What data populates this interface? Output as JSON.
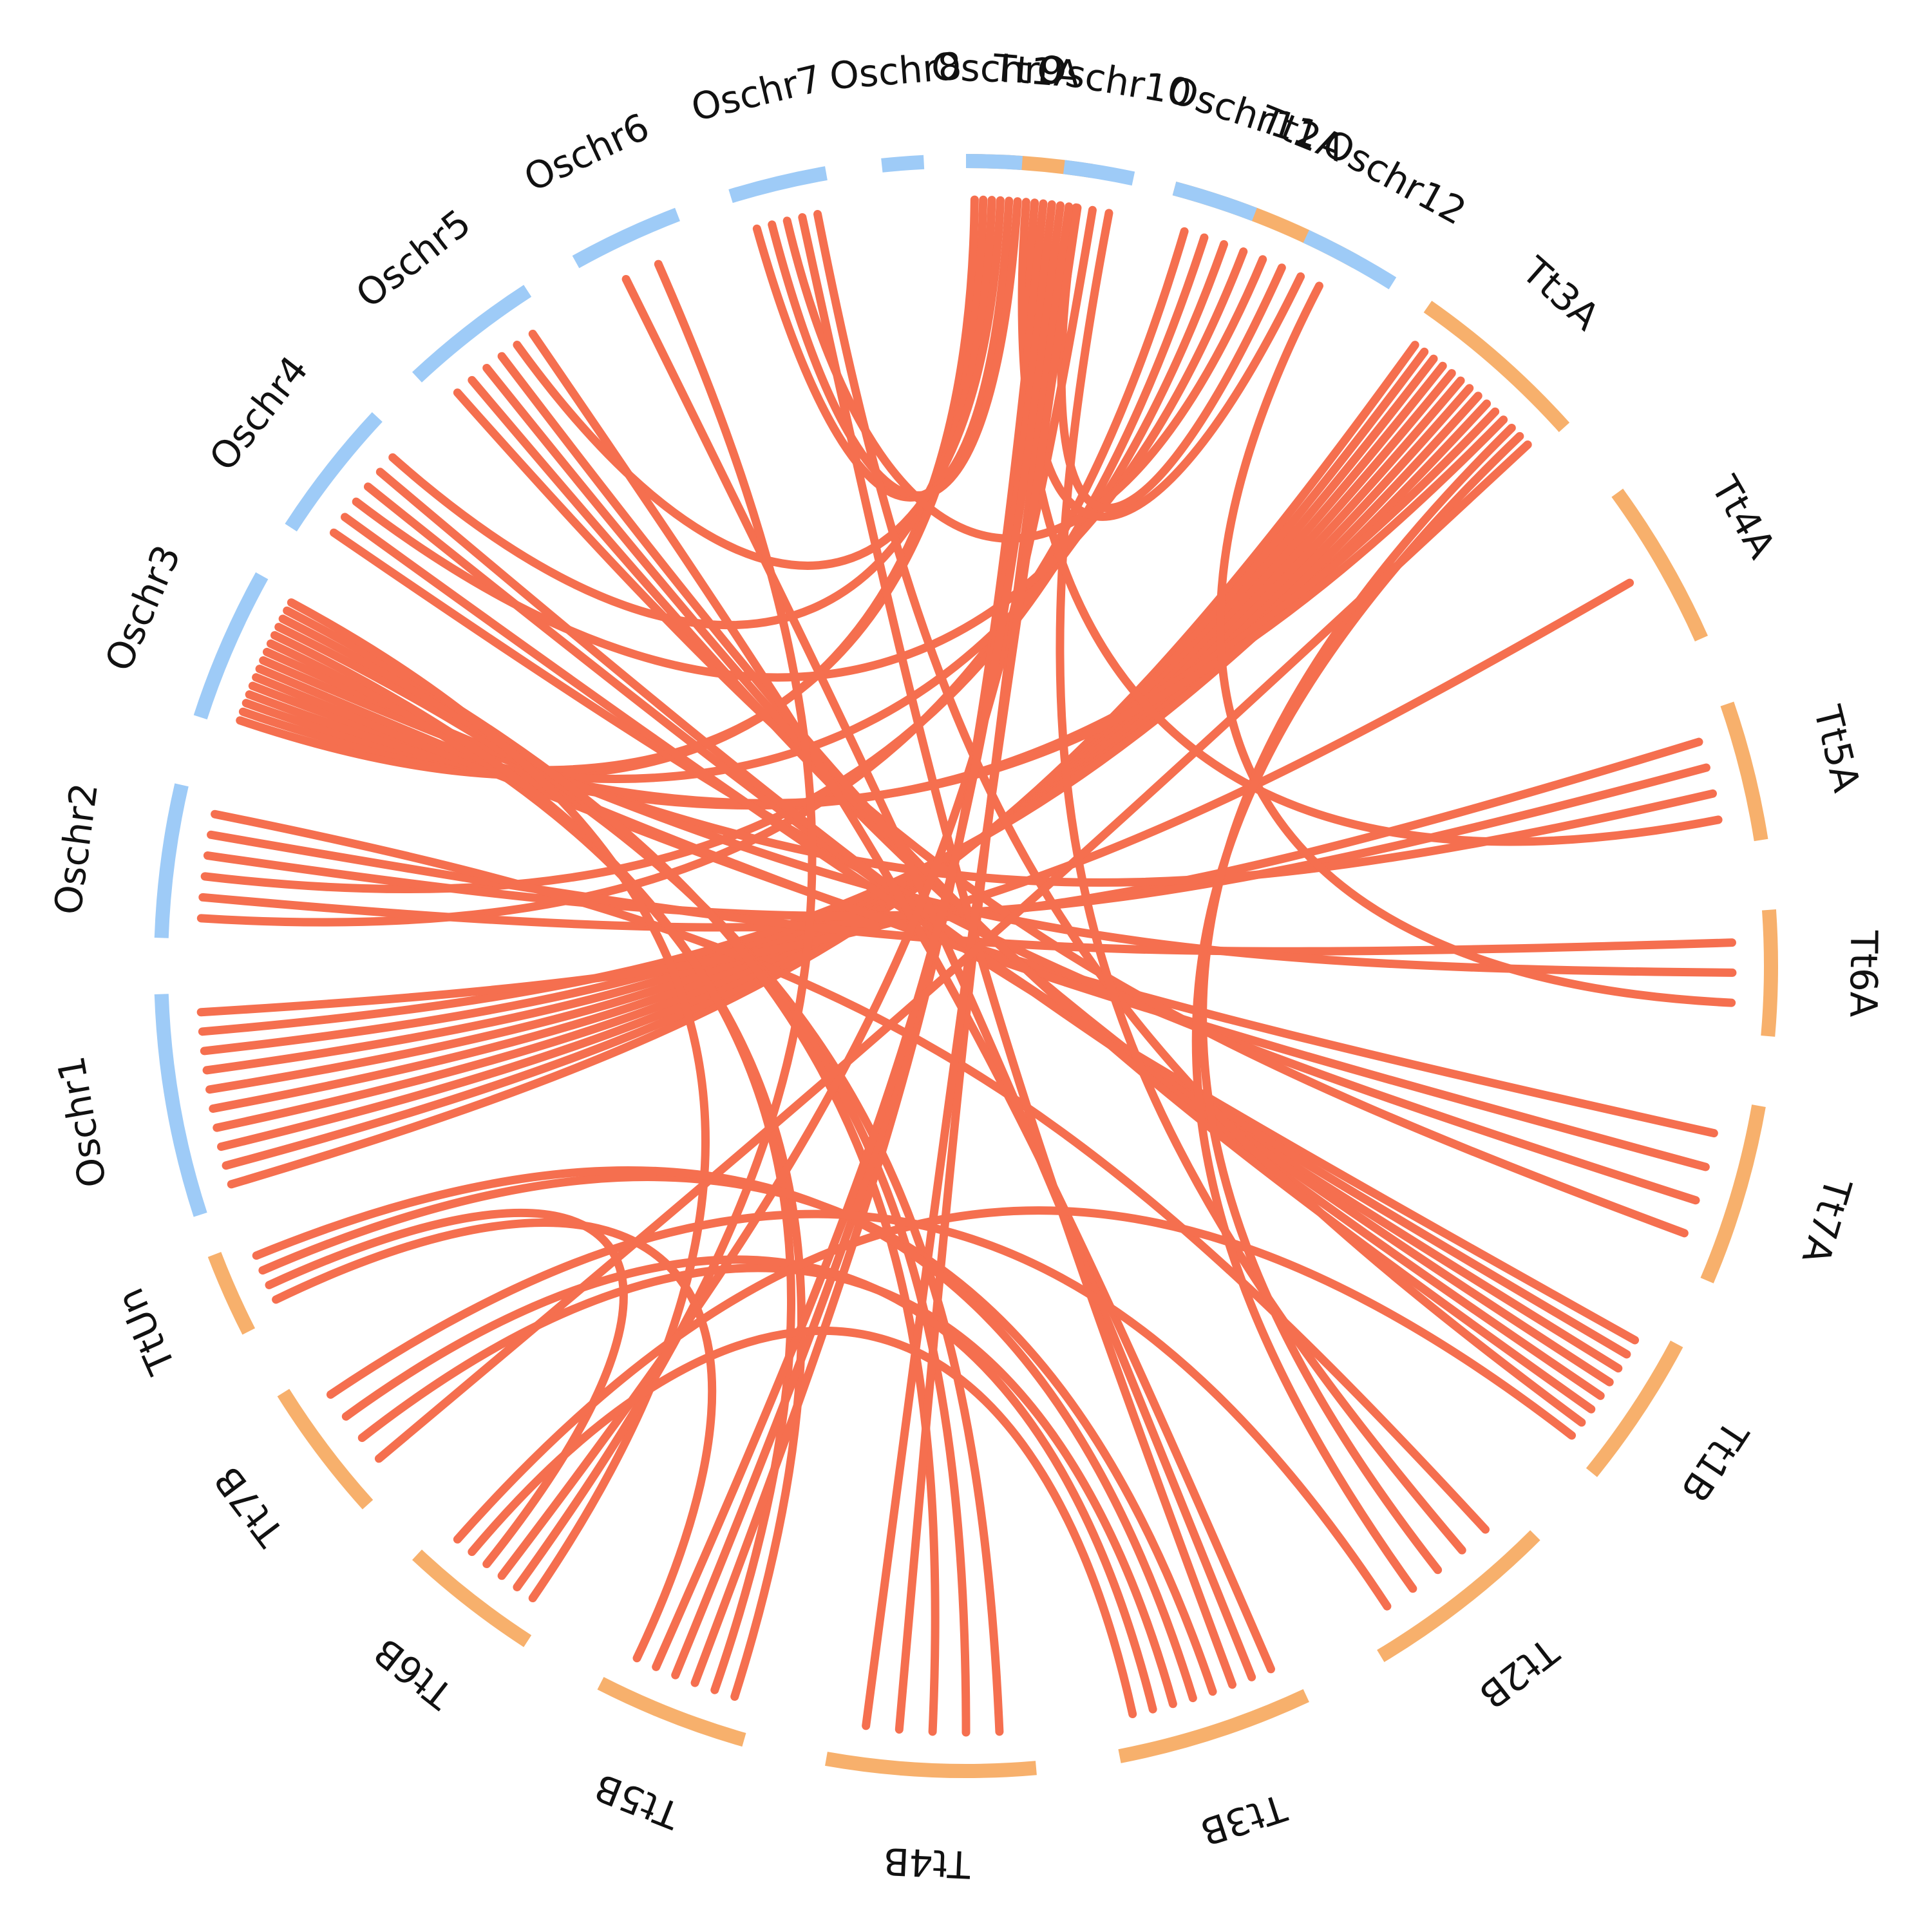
{
  "diagram": {
    "type": "circos-synteny",
    "colors": {
      "oryza_track": "#9ecbf7",
      "triticum_track": "#f7b06c",
      "link": "#f56f4f",
      "label": "#111111",
      "background": "#ffffff"
    },
    "chromosomes": [
      {
        "id": "Tt1A",
        "label": "Tt1A",
        "group": "Tt"
      },
      {
        "id": "Tt2A",
        "label": "Tt2A",
        "group": "Tt"
      },
      {
        "id": "Tt3A",
        "label": "Tt3A",
        "group": "Tt"
      },
      {
        "id": "Tt4A",
        "label": "Tt4A",
        "group": "Tt"
      },
      {
        "id": "Tt5A",
        "label": "Tt5A",
        "group": "Tt"
      },
      {
        "id": "Tt6A",
        "label": "Tt6A",
        "group": "Tt"
      },
      {
        "id": "Tt7A",
        "label": "Tt7A",
        "group": "Tt"
      },
      {
        "id": "Tt1B",
        "label": "Tt1B",
        "group": "Tt"
      },
      {
        "id": "Tt2B",
        "label": "Tt2B",
        "group": "Tt"
      },
      {
        "id": "Tt3B",
        "label": "Tt3B",
        "group": "Tt"
      },
      {
        "id": "Tt4B",
        "label": "Tt4B",
        "group": "Tt"
      },
      {
        "id": "Tt5B",
        "label": "Tt5B",
        "group": "Tt"
      },
      {
        "id": "Tt6B",
        "label": "Tt6B",
        "group": "Tt"
      },
      {
        "id": "Tt7B",
        "label": "Tt7B",
        "group": "Tt"
      },
      {
        "id": "TtUn",
        "label": "TtUn",
        "group": "Tt"
      },
      {
        "id": "Oschr1",
        "label": "Oschr1",
        "group": "Os"
      },
      {
        "id": "Oschr2",
        "label": "Oschr2",
        "group": "Os"
      },
      {
        "id": "Oschr3",
        "label": "Oschr3",
        "group": "Os"
      },
      {
        "id": "Oschr4",
        "label": "Oschr4",
        "group": "Os"
      },
      {
        "id": "Oschr5",
        "label": "Oschr5",
        "group": "Os"
      },
      {
        "id": "Oschr6",
        "label": "Oschr6",
        "group": "Os"
      },
      {
        "id": "Oschr7",
        "label": "Oschr7",
        "group": "Os"
      },
      {
        "id": "Oschr8",
        "label": "Oschr8",
        "group": "Os"
      },
      {
        "id": "Oschr9",
        "label": "Oschr9",
        "group": "Os"
      },
      {
        "id": "Oschr10",
        "label": "Oschr10",
        "group": "Os"
      },
      {
        "id": "Oschr11",
        "label": "Oschr11",
        "group": "Os"
      },
      {
        "id": "Oschr12",
        "label": "Oschr12",
        "group": "Os"
      }
    ],
    "links": [
      [
        "Oschr1",
        "Tt3A"
      ],
      [
        "Oschr1",
        "Tt3A"
      ],
      [
        "Oschr1",
        "Tt3A"
      ],
      [
        "Oschr1",
        "Tt3A"
      ],
      [
        "Oschr1",
        "Tt3A"
      ],
      [
        "Oschr1",
        "Tt3A"
      ],
      [
        "Oschr1",
        "Tt3A"
      ],
      [
        "Oschr1",
        "Tt3A"
      ],
      [
        "Oschr1",
        "Tt3A"
      ],
      [
        "Oschr1",
        "Tt4A"
      ],
      [
        "Oschr2",
        "Tt2A"
      ],
      [
        "Oschr2",
        "Tt5A"
      ],
      [
        "Oschr2",
        "Tt2A"
      ],
      [
        "Oschr2",
        "Tt5A"
      ],
      [
        "Oschr2",
        "Tt6A"
      ],
      [
        "Oschr2",
        "Tt2B"
      ],
      [
        "Oschr3",
        "Tt1A"
      ],
      [
        "Oschr3",
        "Tt1A"
      ],
      [
        "Oschr3",
        "Tt2A"
      ],
      [
        "Oschr3",
        "Tt3A"
      ],
      [
        "Oschr3",
        "Tt3A"
      ],
      [
        "Oschr3",
        "Tt7A"
      ],
      [
        "Oschr3",
        "Tt7A"
      ],
      [
        "Oschr3",
        "Tt5A"
      ],
      [
        "Oschr3",
        "Tt6A"
      ],
      [
        "Oschr3",
        "Tt5B"
      ],
      [
        "Oschr3",
        "Tt5B"
      ],
      [
        "Oschr3",
        "Tt4B"
      ],
      [
        "Oschr3",
        "Tt4B"
      ],
      [
        "Oschr3",
        "Tt4B"
      ],
      [
        "Oschr3",
        "Tt6B"
      ],
      [
        "Oschr4",
        "Tt7A"
      ],
      [
        "Oschr4",
        "Tt1B"
      ],
      [
        "Oschr4",
        "Tt2A"
      ],
      [
        "Oschr4",
        "Tt1B"
      ],
      [
        "Oschr4",
        "Tt1B"
      ],
      [
        "Oschr4",
        "Tt1A"
      ],
      [
        "Oschr5",
        "Tt7A"
      ],
      [
        "Oschr5",
        "Tt1B"
      ],
      [
        "Oschr5",
        "Tt1B"
      ],
      [
        "Oschr5",
        "Tt1B"
      ],
      [
        "Oschr5",
        "Tt1A"
      ],
      [
        "Oschr5",
        "Tt3B"
      ],
      [
        "Oschr6",
        "Tt3B"
      ],
      [
        "Oschr6",
        "Tt6B"
      ],
      [
        "Oschr7",
        "Tt1A"
      ],
      [
        "Oschr7",
        "Tt1A"
      ],
      [
        "Oschr7",
        "Tt2A"
      ],
      [
        "Oschr7",
        "Tt3B"
      ],
      [
        "Oschr7",
        "Tt1B"
      ],
      [
        "Oschr10",
        "Tt2A"
      ],
      [
        "Oschr10",
        "Tt6B"
      ],
      [
        "Oschr10",
        "Tt2B"
      ],
      [
        "Tt1A",
        "Tt5A"
      ],
      [
        "Tt1A",
        "Tt2A"
      ],
      [
        "Tt1A",
        "Tt5B"
      ],
      [
        "Tt1A",
        "Tt5B"
      ],
      [
        "Tt1A",
        "Tt5B"
      ],
      [
        "Tt1A",
        "Tt4B"
      ],
      [
        "Tt1A",
        "Tt4B"
      ],
      [
        "Tt2A",
        "Tt6A"
      ],
      [
        "Tt3A",
        "Tt2B"
      ],
      [
        "Tt3A",
        "Tt2B"
      ],
      [
        "Tt3A",
        "Tt7B"
      ],
      [
        "TtUn",
        "Tt5B"
      ],
      [
        "TtUn",
        "Tt6B"
      ],
      [
        "TtUn",
        "Tt3B"
      ],
      [
        "TtUn",
        "Tt3B"
      ],
      [
        "Tt7B",
        "Tt3B"
      ],
      [
        "Tt7B",
        "Tt3B"
      ],
      [
        "Tt6B",
        "Tt3B"
      ],
      [
        "Tt6B",
        "Tt1B"
      ],
      [
        "Tt7B",
        "Tt2B"
      ]
    ]
  }
}
